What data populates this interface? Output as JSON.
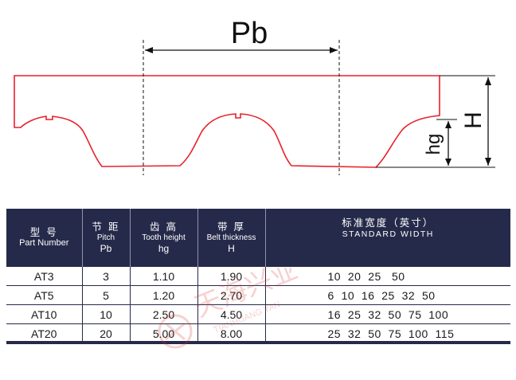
{
  "diagram": {
    "pitch_label": "Pb",
    "thickness_label": "H",
    "tooth_height_label": "hg",
    "outline_color": "#e8202a"
  },
  "table": {
    "header_bg": "#262a4a",
    "columns": [
      {
        "cn": "型 号",
        "en": "Part Number",
        "sym": ""
      },
      {
        "cn": "节 距",
        "en": "Pitch",
        "sym": "Pb"
      },
      {
        "cn": "齿 高",
        "en": "Tooth height",
        "sym": "hg"
      },
      {
        "cn": "带 厚",
        "en": "Belt thickness",
        "sym": "H"
      },
      {
        "cn": "标准宽度（英寸）",
        "en": "STANDARD WIDTH",
        "sym": ""
      }
    ],
    "rows": [
      {
        "part": "AT3",
        "pitch": "3",
        "hg": "1.10",
        "h": "1.90",
        "widths": "10  20  25   50"
      },
      {
        "part": "AT5",
        "pitch": "5",
        "hg": "1.20",
        "h": "2.70",
        "widths": "6  10  16  25  32  50"
      },
      {
        "part": "AT10",
        "pitch": "10",
        "hg": "2.50",
        "h": "4.50",
        "widths": "16  25  32  50  75  100"
      },
      {
        "part": "AT20",
        "pitch": "20",
        "hg": "5.00",
        "h": "8.00",
        "widths": "25  32  50  75  100  115"
      }
    ]
  },
  "watermark": {
    "cn": "天海兴业",
    "en": "TIANHUANG YAN",
    "color": "#d7342f"
  }
}
